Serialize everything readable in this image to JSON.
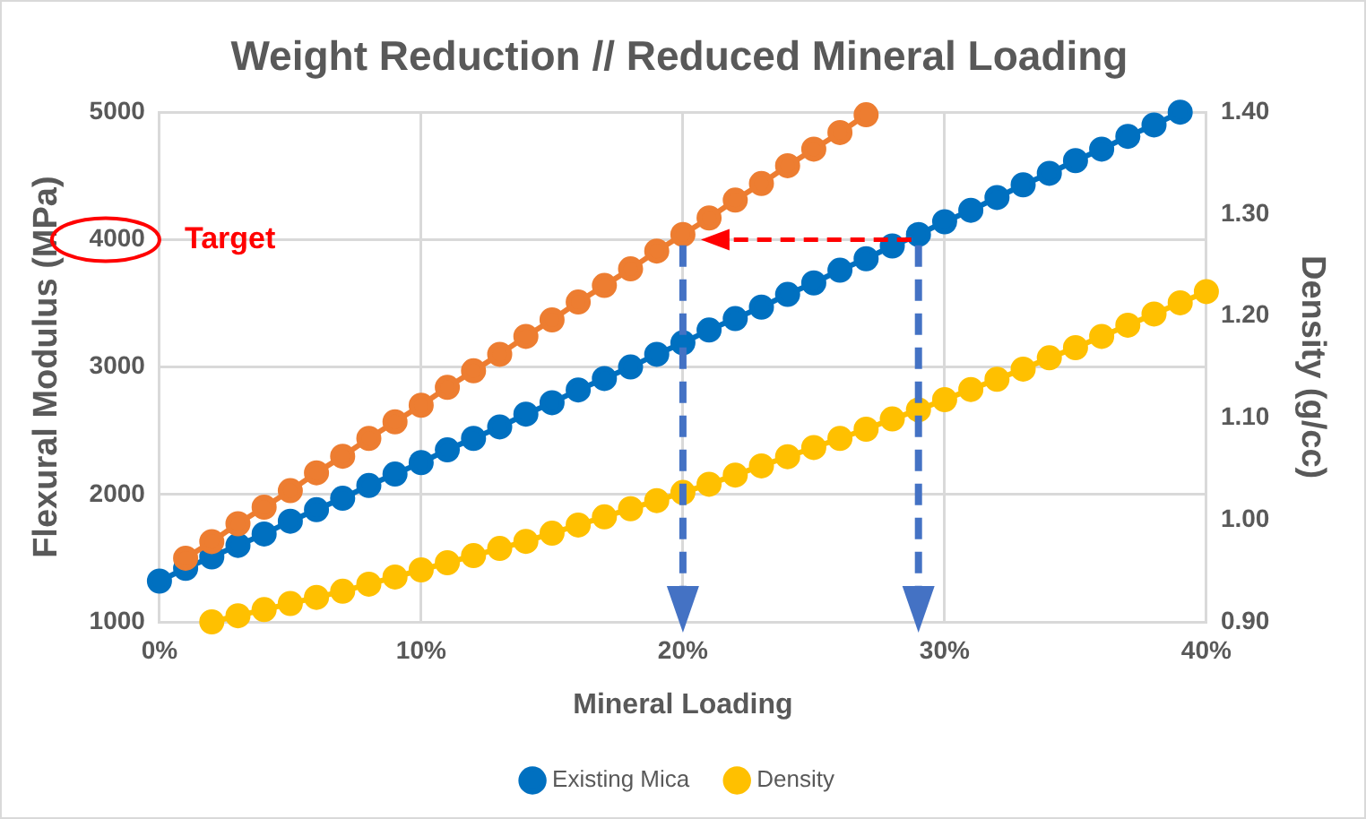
{
  "chart_data": {
    "type": "line",
    "title": "Weight Reduction // Reduced Mineral Loading",
    "xlabel": "Mineral Loading",
    "ylabel": "Flexural Modulus (MPa)",
    "y2label": "Density (g/cc)",
    "xlim": [
      0,
      40
    ],
    "xticks": [
      {
        "value": 0,
        "label": "0%"
      },
      {
        "value": 10,
        "label": "10%"
      },
      {
        "value": 20,
        "label": "20%"
      },
      {
        "value": 30,
        "label": "30%"
      },
      {
        "value": 40,
        "label": "40%"
      }
    ],
    "ylim": [
      1000,
      5000
    ],
    "yticks": [
      1000,
      2000,
      3000,
      4000,
      5000
    ],
    "y2lim": [
      0.9,
      1.4
    ],
    "y2ticks": [
      {
        "value": 0.9,
        "label": "0.90"
      },
      {
        "value": 1.0,
        "label": "1.00"
      },
      {
        "value": 1.1,
        "label": "1.10"
      },
      {
        "value": 1.2,
        "label": "1.20"
      },
      {
        "value": 1.3,
        "label": "1.30"
      },
      {
        "value": 1.4,
        "label": "1.40"
      }
    ],
    "grid": true,
    "legend": "bottom",
    "marker": "circle",
    "line_style": "solid",
    "ref_lines": [
      {
        "axis": "y",
        "value": 4000,
        "label": "Target",
        "color": "#ff0000",
        "line_style": "dashed"
      }
    ],
    "series": [
      {
        "color": "#ed7d31",
        "axis": "y",
        "x": [
          1,
          2,
          3,
          4,
          5,
          6,
          7,
          8,
          9,
          10,
          11,
          12,
          13,
          14,
          15,
          16,
          17,
          18,
          19,
          20,
          21,
          22,
          23,
          24,
          25,
          26,
          27
        ],
        "values": [
          1500,
          1630,
          1770,
          1900,
          2030,
          2170,
          2300,
          2440,
          2570,
          2700,
          2840,
          2970,
          3100,
          3240,
          3370,
          3510,
          3640,
          3770,
          3910,
          4040,
          4170,
          4310,
          4440,
          4580,
          4710,
          4840,
          4980
        ]
      },
      {
        "name": "Existing Mica",
        "color": "#0070c0",
        "axis": "y",
        "x": [
          0,
          1,
          2,
          3,
          4,
          5,
          6,
          7,
          8,
          9,
          10,
          11,
          12,
          13,
          14,
          15,
          16,
          17,
          18,
          19,
          20,
          21,
          22,
          23,
          24,
          25,
          26,
          27,
          28,
          29,
          30,
          31,
          32,
          33,
          34,
          35,
          36,
          37,
          38,
          39
        ],
        "values": [
          1320,
          1420,
          1510,
          1600,
          1690,
          1790,
          1880,
          1970,
          2070,
          2160,
          2250,
          2350,
          2440,
          2530,
          2630,
          2720,
          2820,
          2910,
          3000,
          3100,
          3190,
          3290,
          3380,
          3470,
          3570,
          3660,
          3760,
          3850,
          3950,
          4040,
          4140,
          4230,
          4330,
          4430,
          4520,
          4620,
          4710,
          4810,
          4900,
          5000
        ]
      },
      {
        "name": "Density",
        "color": "#ffc000",
        "axis": "y2",
        "x": [
          2,
          3,
          4,
          5,
          6,
          7,
          8,
          9,
          10,
          11,
          12,
          13,
          14,
          15,
          16,
          17,
          18,
          19,
          20,
          21,
          22,
          23,
          24,
          25,
          26,
          27,
          28,
          29,
          30,
          31,
          32,
          33,
          34,
          35,
          36,
          37,
          38,
          39,
          40
        ],
        "values": [
          0.9,
          0.906,
          0.912,
          0.918,
          0.924,
          0.93,
          0.937,
          0.944,
          0.951,
          0.958,
          0.965,
          0.972,
          0.979,
          0.987,
          0.995,
          1.003,
          1.011,
          1.019,
          1.027,
          1.035,
          1.044,
          1.053,
          1.062,
          1.071,
          1.08,
          1.089,
          1.099,
          1.108,
          1.118,
          1.128,
          1.138,
          1.148,
          1.159,
          1.169,
          1.18,
          1.191,
          1.202,
          1.213,
          1.224
        ]
      }
    ]
  }
}
